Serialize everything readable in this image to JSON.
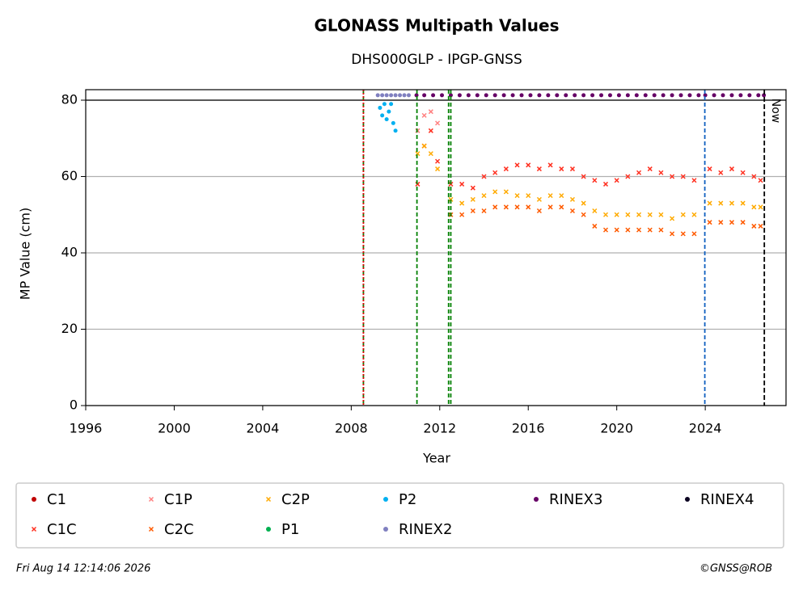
{
  "chart_data": {
    "type": "scatter",
    "title": "GLONASS Multipath Values",
    "subtitle": "DHS000GLP - IPGP-GNSS",
    "x_label": "Year",
    "y_label": "MP Value (cm)",
    "xlim": [
      1996,
      2027.65
    ],
    "ylim": [
      0,
      82.75
    ],
    "xticks": [
      1996,
      2000,
      2004,
      2008,
      2012,
      2016,
      2020,
      2024
    ],
    "yticks": [
      0,
      20,
      40,
      60,
      80
    ],
    "grid": true,
    "hline": 80,
    "events": [
      {
        "x": 2008.55,
        "color": "#008000",
        "dash": "5,3"
      },
      {
        "x": 2008.55,
        "color": "#dd0000",
        "dash": "2,2"
      },
      {
        "x": 2010.97,
        "color": "#008000",
        "dash": "5,3"
      },
      {
        "x": 2012.4,
        "color": "#008000",
        "dash": "5,3"
      },
      {
        "x": 2012.5,
        "color": "#008000",
        "dash": "5,3"
      },
      {
        "x": 2023.98,
        "color": "#1060c0",
        "dash": "5,3"
      },
      {
        "x": 2026.67,
        "color": "#000000",
        "dash": "6,3"
      }
    ],
    "now_label": "Now",
    "series": [
      {
        "name": "C1",
        "color": "#c00000",
        "marker": "dot",
        "x": [],
        "values": []
      },
      {
        "name": "C1C",
        "color": "#ff3020",
        "marker": "x",
        "x": [
          2011.0,
          2011.3,
          2011.6,
          2011.9,
          2012.5,
          2013.0,
          2013.5,
          2014.0,
          2014.5,
          2015.0,
          2015.5,
          2016.0,
          2016.5,
          2017.0,
          2017.5,
          2018.0,
          2018.5,
          2019.0,
          2019.5,
          2020.0,
          2020.5,
          2021.0,
          2021.5,
          2022.0,
          2022.5,
          2023.0,
          2023.5,
          2024.2,
          2024.7,
          2025.2,
          2025.7,
          2026.2,
          2026.5
        ],
        "values": [
          58,
          68,
          72,
          64,
          58,
          58,
          57,
          60,
          61,
          62,
          63,
          63,
          62,
          63,
          62,
          62,
          60,
          59,
          58,
          59,
          60,
          61,
          62,
          61,
          60,
          60,
          59,
          62,
          61,
          62,
          61,
          60,
          59
        ]
      },
      {
        "name": "C1P",
        "color": "#ff8080",
        "marker": "x",
        "x": [
          2011.0,
          2011.3,
          2011.6,
          2011.9
        ],
        "values": [
          72,
          76,
          77,
          74
        ]
      },
      {
        "name": "C2C",
        "color": "#ff5a00",
        "marker": "x",
        "x": [
          2012.5,
          2013.0,
          2013.5,
          2014.0,
          2014.5,
          2015.0,
          2015.5,
          2016.0,
          2016.5,
          2017.0,
          2017.5,
          2018.0,
          2018.5,
          2019.0,
          2019.5,
          2020.0,
          2020.5,
          2021.0,
          2021.5,
          2022.0,
          2022.5,
          2023.0,
          2023.5,
          2024.2,
          2024.7,
          2025.2,
          2025.7,
          2026.2,
          2026.5
        ],
        "values": [
          50,
          50,
          51,
          51,
          52,
          52,
          52,
          52,
          51,
          52,
          52,
          51,
          50,
          47,
          46,
          46,
          46,
          46,
          46,
          46,
          45,
          45,
          45,
          48,
          48,
          48,
          48,
          47,
          47
        ]
      },
      {
        "name": "C2P",
        "color": "#ffaa00",
        "marker": "x",
        "x": [
          2011.0,
          2011.3,
          2011.6,
          2011.9,
          2012.5,
          2013.0,
          2013.5,
          2014.0,
          2014.5,
          2015.0,
          2015.5,
          2016.0,
          2016.5,
          2017.0,
          2017.5,
          2018.0,
          2018.5,
          2019.0,
          2019.5,
          2020.0,
          2020.5,
          2021.0,
          2021.5,
          2022.0,
          2022.5,
          2023.0,
          2023.5,
          2024.2,
          2024.7,
          2025.2,
          2025.7,
          2026.2,
          2026.5
        ],
        "values": [
          66,
          68,
          66,
          62,
          54,
          53,
          54,
          55,
          56,
          56,
          55,
          55,
          54,
          55,
          55,
          54,
          53,
          51,
          50,
          50,
          50,
          50,
          50,
          50,
          49,
          50,
          50,
          53,
          53,
          53,
          53,
          52,
          52
        ]
      },
      {
        "name": "P1",
        "color": "#00b050",
        "marker": "dot",
        "x": [],
        "values": []
      },
      {
        "name": "P2",
        "color": "#00b0f0",
        "marker": "dot",
        "x": [
          2009.3,
          2009.4,
          2009.5,
          2009.6,
          2009.7,
          2009.8,
          2009.9,
          2010.0
        ],
        "values": [
          78,
          76,
          79,
          75,
          77,
          79,
          74,
          72
        ]
      },
      {
        "name": "RINEX2",
        "color": "#8080c0",
        "marker": "dot",
        "x": [
          2009.2,
          2009.4,
          2009.6,
          2009.8,
          2010.0,
          2010.2,
          2010.4,
          2010.6
        ],
        "values": [
          81.3,
          81.3,
          81.3,
          81.3,
          81.3,
          81.3,
          81.3,
          81.3
        ]
      },
      {
        "name": "RINEX3",
        "color": "#660066",
        "marker": "dot",
        "x": [
          2010.95,
          2011.3,
          2011.7,
          2012.1,
          2012.5,
          2012.9,
          2013.3,
          2013.7,
          2014.1,
          2014.5,
          2014.9,
          2015.3,
          2015.7,
          2016.1,
          2016.5,
          2016.9,
          2017.3,
          2017.7,
          2018.1,
          2018.5,
          2018.9,
          2019.3,
          2019.7,
          2020.1,
          2020.5,
          2020.9,
          2021.3,
          2021.7,
          2022.1,
          2022.5,
          2022.9,
          2023.3,
          2023.7,
          2024.0,
          2024.4,
          2024.8,
          2025.2,
          2025.6,
          2026.0,
          2026.4,
          2026.65
        ],
        "values": [
          81.3,
          81.3,
          81.3,
          81.3,
          81.3,
          81.3,
          81.3,
          81.3,
          81.3,
          81.3,
          81.3,
          81.3,
          81.3,
          81.3,
          81.3,
          81.3,
          81.3,
          81.3,
          81.3,
          81.3,
          81.3,
          81.3,
          81.3,
          81.3,
          81.3,
          81.3,
          81.3,
          81.3,
          81.3,
          81.3,
          81.3,
          81.3,
          81.3,
          81.3,
          81.3,
          81.3,
          81.3,
          81.3,
          81.3,
          81.3,
          81.3
        ]
      },
      {
        "name": "RINEX4",
        "color": "#0a0020",
        "marker": "dot",
        "x": [],
        "values": []
      }
    ],
    "legend_position": "below",
    "footer_left": "Fri Aug 14 12:14:06 2026",
    "footer_right": "©GNSS@ROB"
  }
}
